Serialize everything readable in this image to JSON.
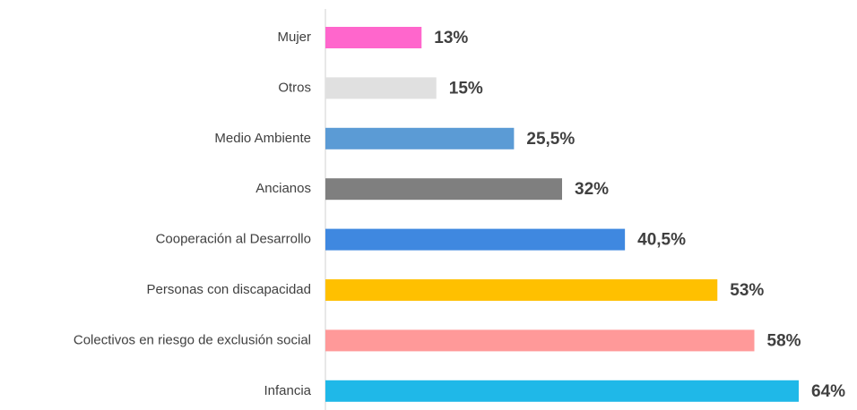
{
  "chart_data": {
    "type": "bar",
    "orientation": "horizontal",
    "categories": [
      "Mujer",
      "Otros",
      "Medio Ambiente",
      "Ancianos",
      "Cooperación al Desarrollo",
      "Personas con discapacidad",
      "Colectivos en riesgo de exclusión social",
      "Infancia"
    ],
    "values": [
      13,
      15,
      25.5,
      32,
      40.5,
      53,
      58,
      64
    ],
    "value_labels": [
      "13%",
      "15%",
      "25,5%",
      "32%",
      "40,5%",
      "53%",
      "58%",
      "64%"
    ],
    "colors": [
      "#ff66cc",
      "#e0e0e0",
      "#5b9bd5",
      "#7f7f7f",
      "#3f88e0",
      "#ffc000",
      "#ff9999",
      "#1fb8e8"
    ]
  }
}
